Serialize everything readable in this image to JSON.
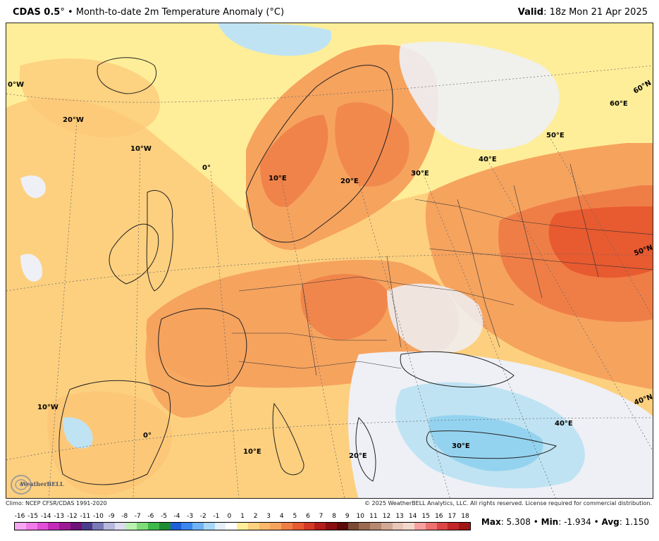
{
  "header": {
    "model": "CDAS 0.5",
    "degree_mark": "°",
    "separator": " • ",
    "product": "Month-to-date 2m Temperature Anomaly (°C)",
    "valid_label": "Valid",
    "valid_value": ": 18z Mon 21 Apr 2025"
  },
  "map": {
    "lon_labels": [
      "0°W",
      "20°W",
      "10°W",
      "0°",
      "10°E",
      "20°E",
      "30°E",
      "40°E",
      "50°E",
      "60°E",
      "60°N",
      "50°N",
      "40°N",
      "40°E",
      "30°E",
      "20°E",
      "10°E",
      "0°",
      "10°W"
    ],
    "colors": {
      "ocean_yellow": "#ffee99",
      "light_orange": "#fcc878",
      "orange": "#f6a35e",
      "dark_orange": "#ef7e46",
      "red_orange": "#e85a30",
      "cool_white": "#eef0f6",
      "light_blue": "#bfe3f3",
      "blue": "#8fd0ee",
      "border": "#222222"
    }
  },
  "footer": {
    "climo": "Climo: NCEP CFSR/CDAS 1991-2020",
    "copyright": "© 2025 WeatherBELL Analytics, LLC. All rights reserved. License required for commercial distribution."
  },
  "colorbar": {
    "labels": [
      "-16",
      "-15",
      "-14",
      "-13",
      "-12",
      "-11",
      "-10",
      "-9",
      "-8",
      "-7",
      "-6",
      "-5",
      "-4",
      "-3",
      "-2",
      "-1",
      "0",
      "1",
      "2",
      "3",
      "4",
      "5",
      "6",
      "7",
      "8",
      "9",
      "10",
      "11",
      "12",
      "13",
      "14",
      "15",
      "16",
      "17",
      "18"
    ],
    "colors": [
      "#f7a6f2",
      "#f17ae9",
      "#e24fd8",
      "#c32cb8",
      "#9c1a94",
      "#6f127a",
      "#4a3c8c",
      "#7a7ab8",
      "#b8b8dd",
      "#dcdcf0",
      "#b9f2b0",
      "#7fdc7a",
      "#3fb84a",
      "#1e8c32",
      "#1f5fd8",
      "#3b86ef",
      "#6fb3f5",
      "#a9d7f8",
      "#e6eef8",
      "#ffffff",
      "#ffee99",
      "#fcd27e",
      "#fbb86a",
      "#f6a35e",
      "#ef7e46",
      "#e85a30",
      "#d43a24",
      "#b21e1a",
      "#8a0f10",
      "#5c0b0a",
      "#7a4a34",
      "#9a6a50",
      "#b88870",
      "#d2a896",
      "#e8c6b8",
      "#f2d8cc",
      "#f7a0a0",
      "#ee7070",
      "#dd4545",
      "#c22626",
      "#a01515"
    ],
    "stats_max_label": "Max",
    "stats_max": ": 5.308",
    "stats_min_label": "Min",
    "stats_min": ": -1.934",
    "stats_avg_label": "Avg",
    "stats_avg": ": 1.150",
    "stats_sep": " • "
  },
  "logo": {
    "text": "WeatherBELL"
  }
}
